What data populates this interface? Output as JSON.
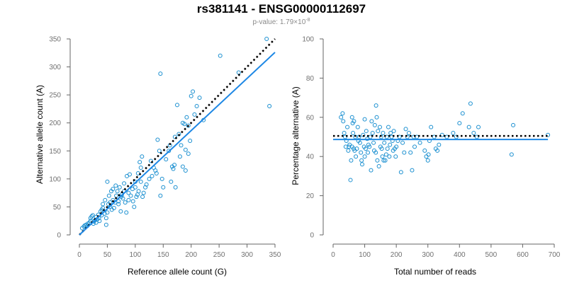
{
  "figure": {
    "title": "rs381141 - ENSG00000112697",
    "pvalue_prefix": "p-value: 1.79×10",
    "pvalue_exponent": "-8"
  },
  "colors": {
    "points": "#1a8fd0",
    "fit": "#1e88e5",
    "reference": "#000000"
  },
  "chart_data": [
    {
      "type": "scatter",
      "xlabel": "Reference allele count (G)",
      "ylabel": "Alternative allele count (A)",
      "xlim": [
        0,
        350
      ],
      "ylim": [
        0,
        350
      ],
      "xticks": [
        0,
        50,
        100,
        150,
        200,
        250,
        300,
        350
      ],
      "yticks": [
        0,
        50,
        100,
        150,
        200,
        250,
        300,
        350
      ],
      "fit_line": {
        "style": "solid",
        "points": [
          [
            0,
            0
          ],
          [
            350,
            326
          ]
        ]
      },
      "reference_line": {
        "style": "dotted",
        "points": [
          [
            0,
            0
          ],
          [
            350,
            350
          ]
        ]
      },
      "points": [
        [
          5,
          12
        ],
        [
          8,
          15
        ],
        [
          10,
          17
        ],
        [
          12,
          18
        ],
        [
          14,
          16
        ],
        [
          15,
          20
        ],
        [
          18,
          22
        ],
        [
          20,
          25
        ],
        [
          20,
          30
        ],
        [
          22,
          33
        ],
        [
          24,
          35
        ],
        [
          25,
          20
        ],
        [
          26,
          24
        ],
        [
          28,
          26
        ],
        [
          30,
          32
        ],
        [
          30,
          22
        ],
        [
          32,
          28
        ],
        [
          34,
          36
        ],
        [
          35,
          30
        ],
        [
          36,
          25
        ],
        [
          38,
          42
        ],
        [
          40,
          35
        ],
        [
          40,
          45
        ],
        [
          42,
          48
        ],
        [
          42,
          55
        ],
        [
          45,
          38
        ],
        [
          46,
          62
        ],
        [
          48,
          30
        ],
        [
          48,
          18
        ],
        [
          50,
          95
        ],
        [
          50,
          40
        ],
        [
          52,
          55
        ],
        [
          53,
          70
        ],
        [
          55,
          50
        ],
        [
          55,
          58
        ],
        [
          57,
          78
        ],
        [
          58,
          45
        ],
        [
          60,
          62
        ],
        [
          60,
          82
        ],
        [
          62,
          48
        ],
        [
          64,
          58
        ],
        [
          65,
          88
        ],
        [
          66,
          70
        ],
        [
          68,
          78
        ],
        [
          70,
          55
        ],
        [
          70,
          60
        ],
        [
          72,
          85
        ],
        [
          74,
          42
        ],
        [
          75,
          68
        ],
        [
          76,
          72
        ],
        [
          78,
          65
        ],
        [
          80,
          78
        ],
        [
          80,
          92
        ],
        [
          82,
          58
        ],
        [
          84,
          40
        ],
        [
          85,
          105
        ],
        [
          88,
          62
        ],
        [
          88,
          75
        ],
        [
          90,
          108
        ],
        [
          92,
          70
        ],
        [
          95,
          82
        ],
        [
          96,
          60
        ],
        [
          98,
          50
        ],
        [
          100,
          95
        ],
        [
          100,
          85
        ],
        [
          102,
          68
        ],
        [
          104,
          72
        ],
        [
          105,
          110
        ],
        [
          106,
          78
        ],
        [
          108,
          130
        ],
        [
          110,
          120
        ],
        [
          110,
          95
        ],
        [
          112,
          140
        ],
        [
          113,
          68
        ],
        [
          115,
          75
        ],
        [
          118,
          85
        ],
        [
          120,
          90
        ],
        [
          125,
          100
        ],
        [
          128,
          132
        ],
        [
          130,
          105
        ],
        [
          133,
          120
        ],
        [
          136,
          115
        ],
        [
          138,
          110
        ],
        [
          140,
          170
        ],
        [
          143,
          150
        ],
        [
          145,
          288
        ],
        [
          145,
          70
        ],
        [
          148,
          100
        ],
        [
          150,
          85
        ],
        [
          155,
          135
        ],
        [
          160,
          150
        ],
        [
          162,
          160
        ],
        [
          164,
          95
        ],
        [
          166,
          122
        ],
        [
          168,
          118
        ],
        [
          170,
          125
        ],
        [
          171,
          175
        ],
        [
          172,
          85
        ],
        [
          175,
          232
        ],
        [
          178,
          180
        ],
        [
          180,
          140
        ],
        [
          182,
          160
        ],
        [
          185,
          122
        ],
        [
          185,
          200
        ],
        [
          188,
          198
        ],
        [
          190,
          115
        ],
        [
          190,
          152
        ],
        [
          192,
          210
        ],
        [
          195,
          195
        ],
        [
          195,
          145
        ],
        [
          198,
          168
        ],
        [
          200,
          248
        ],
        [
          203,
          256
        ],
        [
          206,
          215
        ],
        [
          210,
          230
        ],
        [
          215,
          245
        ],
        [
          222,
          205
        ],
        [
          252,
          320
        ],
        [
          285,
          290
        ],
        [
          335,
          350
        ],
        [
          340,
          230
        ]
      ]
    },
    {
      "type": "scatter",
      "xlabel": "Total number of reads",
      "ylabel": "Percentage alternative (A)",
      "xlim": [
        0,
        700
      ],
      "ylim": [
        0,
        100
      ],
      "xticks": [
        0,
        100,
        200,
        300,
        400,
        500,
        600,
        700
      ],
      "yticks": [
        0,
        20,
        40,
        60,
        80,
        100
      ],
      "fit_line": {
        "style": "solid",
        "points": [
          [
            0,
            48.7
          ],
          [
            680,
            48.7
          ]
        ]
      },
      "reference_line": {
        "style": "dotted",
        "points": [
          [
            0,
            50.5
          ],
          [
            680,
            50.5
          ]
        ]
      },
      "points": [
        [
          25,
          60
        ],
        [
          30,
          62
        ],
        [
          32,
          58
        ],
        [
          35,
          52
        ],
        [
          38,
          50
        ],
        [
          40,
          45
        ],
        [
          42,
          48
        ],
        [
          45,
          55
        ],
        [
          48,
          43
        ],
        [
          50,
          45
        ],
        [
          52,
          46
        ],
        [
          55,
          28
        ],
        [
          57,
          38
        ],
        [
          60,
          45
        ],
        [
          60,
          60
        ],
        [
          62,
          57
        ],
        [
          63,
          52
        ],
        [
          65,
          44
        ],
        [
          66,
          58
        ],
        [
          68,
          43
        ],
        [
          70,
          50
        ],
        [
          72,
          40
        ],
        [
          75,
          44
        ],
        [
          78,
          55
        ],
        [
          80,
          48
        ],
        [
          82,
          50
        ],
        [
          85,
          47
        ],
        [
          88,
          42
        ],
        [
          90,
          38
        ],
        [
          92,
          36
        ],
        [
          95,
          51
        ],
        [
          98,
          45
        ],
        [
          100,
          59
        ],
        [
          100,
          40
        ],
        [
          103,
          44
        ],
        [
          105,
          53
        ],
        [
          108,
          49
        ],
        [
          110,
          42
        ],
        [
          112,
          46
        ],
        [
          115,
          45
        ],
        [
          118,
          50
        ],
        [
          120,
          33
        ],
        [
          122,
          58
        ],
        [
          125,
          52
        ],
        [
          128,
          47
        ],
        [
          130,
          43
        ],
        [
          132,
          56
        ],
        [
          135,
          42
        ],
        [
          136,
          66
        ],
        [
          138,
          60
        ],
        [
          140,
          38
        ],
        [
          142,
          53
        ],
        [
          145,
          35
        ],
        [
          148,
          55
        ],
        [
          150,
          45
        ],
        [
          152,
          50
        ],
        [
          154,
          44
        ],
        [
          156,
          40
        ],
        [
          158,
          52
        ],
        [
          160,
          38
        ],
        [
          162,
          47
        ],
        [
          165,
          38
        ],
        [
          168,
          41
        ],
        [
          170,
          50
        ],
        [
          172,
          44
        ],
        [
          175,
          55
        ],
        [
          178,
          40
        ],
        [
          180,
          46
        ],
        [
          182,
          52
        ],
        [
          185,
          50
        ],
        [
          188,
          48
        ],
        [
          190,
          43
        ],
        [
          192,
          53
        ],
        [
          195,
          44
        ],
        [
          198,
          40
        ],
        [
          200,
          45
        ],
        [
          205,
          48
        ],
        [
          210,
          50
        ],
        [
          215,
          32
        ],
        [
          220,
          47
        ],
        [
          225,
          42
        ],
        [
          230,
          54
        ],
        [
          235,
          50
        ],
        [
          240,
          52
        ],
        [
          245,
          42
        ],
        [
          250,
          33
        ],
        [
          255,
          50
        ],
        [
          258,
          45
        ],
        [
          265,
          50
        ],
        [
          275,
          47
        ],
        [
          290,
          43
        ],
        [
          295,
          40
        ],
        [
          300,
          38
        ],
        [
          302,
          41
        ],
        [
          305,
          48
        ],
        [
          310,
          55
        ],
        [
          320,
          50
        ],
        [
          325,
          44
        ],
        [
          330,
          43
        ],
        [
          335,
          46
        ],
        [
          345,
          51
        ],
        [
          360,
          50
        ],
        [
          380,
          52
        ],
        [
          390,
          50
        ],
        [
          400,
          57
        ],
        [
          410,
          62
        ],
        [
          430,
          55
        ],
        [
          435,
          67
        ],
        [
          445,
          52
        ],
        [
          455,
          50
        ],
        [
          460,
          55
        ],
        [
          565,
          41
        ],
        [
          570,
          56
        ],
        [
          680,
          51
        ]
      ]
    }
  ]
}
